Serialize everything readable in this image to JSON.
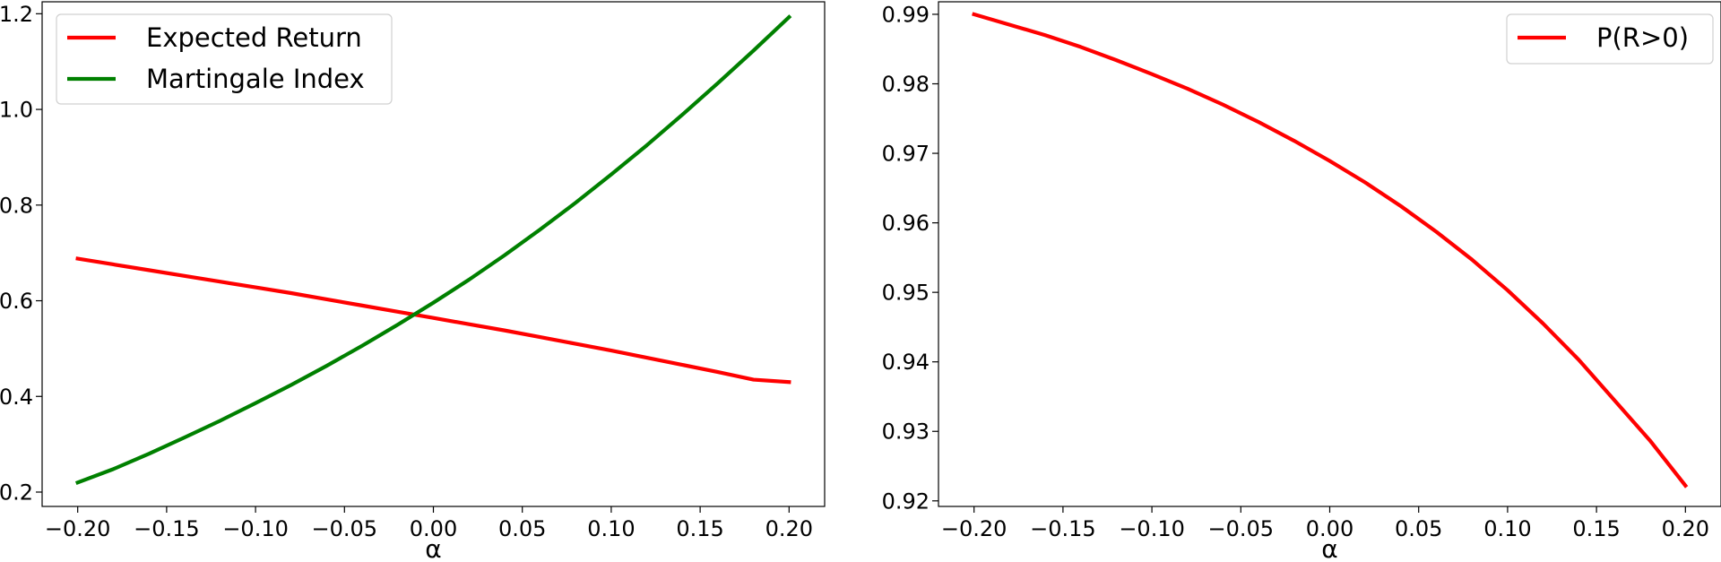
{
  "chart_data": [
    {
      "type": "line",
      "title": "",
      "xlabel": "α",
      "ylabel": "",
      "xlim": [
        -0.22,
        0.22
      ],
      "ylim": [
        0.17,
        1.225
      ],
      "xticks": [
        -0.2,
        -0.15,
        -0.1,
        -0.05,
        0.0,
        0.05,
        0.1,
        0.15,
        0.2
      ],
      "xtick_labels": [
        "−0.20",
        "−0.15",
        "−0.10",
        "−0.05",
        "0.00",
        "0.05",
        "0.10",
        "0.15",
        "0.20"
      ],
      "yticks": [
        0.2,
        0.4,
        0.6,
        0.8,
        1.0,
        1.2
      ],
      "ytick_labels": [
        "0.2",
        "0.4",
        "0.6",
        "0.8",
        "1.0",
        "1.2"
      ],
      "grid": false,
      "legend": "upper left",
      "x": [
        -0.2,
        -0.18,
        -0.16,
        -0.14,
        -0.12,
        -0.1,
        -0.08,
        -0.06,
        -0.04,
        -0.02,
        0.0,
        0.02,
        0.04,
        0.06,
        0.08,
        0.1,
        0.12,
        0.14,
        0.16,
        0.18,
        0.2
      ],
      "series": [
        {
          "name": "Expected Return",
          "color": "#ff0000",
          "values": [
            0.688,
            0.676,
            0.664,
            0.652,
            0.64,
            0.628,
            0.616,
            0.603,
            0.59,
            0.577,
            0.564,
            0.551,
            0.538,
            0.524,
            0.51,
            0.496,
            0.481,
            0.466,
            0.451,
            0.435,
            0.43
          ]
        },
        {
          "name": "Martingale Index",
          "color": "#008000",
          "values": [
            0.22,
            0.248,
            0.28,
            0.314,
            0.349,
            0.386,
            0.424,
            0.464,
            0.506,
            0.55,
            0.596,
            0.644,
            0.695,
            0.749,
            0.805,
            0.864,
            0.925,
            0.989,
            1.055,
            1.123,
            1.193
          ]
        }
      ]
    },
    {
      "type": "line",
      "title": "",
      "xlabel": "α",
      "ylabel": "",
      "xlim": [
        -0.22,
        0.22
      ],
      "ylim": [
        0.9192,
        0.9918
      ],
      "xticks": [
        -0.2,
        -0.15,
        -0.1,
        -0.05,
        0.0,
        0.05,
        0.1,
        0.15,
        0.2
      ],
      "xtick_labels": [
        "−0.20",
        "−0.15",
        "−0.10",
        "−0.05",
        "0.00",
        "0.05",
        "0.10",
        "0.15",
        "0.20"
      ],
      "yticks": [
        0.92,
        0.93,
        0.94,
        0.95,
        0.96,
        0.97,
        0.98,
        0.99
      ],
      "ytick_labels": [
        "0.92",
        "0.93",
        "0.94",
        "0.95",
        "0.96",
        "0.97",
        "0.98",
        "0.99"
      ],
      "grid": false,
      "legend": "upper right",
      "x": [
        -0.2,
        -0.18,
        -0.16,
        -0.14,
        -0.12,
        -0.1,
        -0.08,
        -0.06,
        -0.04,
        -0.02,
        0.0,
        0.02,
        0.04,
        0.06,
        0.08,
        0.1,
        0.12,
        0.14,
        0.16,
        0.18,
        0.2
      ],
      "series": [
        {
          "name": "P(R>0)",
          "color": "#ff0000",
          "values": [
            0.99,
            0.9885,
            0.987,
            0.9853,
            0.9834,
            0.9814,
            0.9793,
            0.977,
            0.9745,
            0.9718,
            0.9689,
            0.9658,
            0.9624,
            0.9587,
            0.9547,
            0.9503,
            0.9455,
            0.9403,
            0.9345,
            0.9287,
            0.9222
          ]
        }
      ]
    }
  ]
}
